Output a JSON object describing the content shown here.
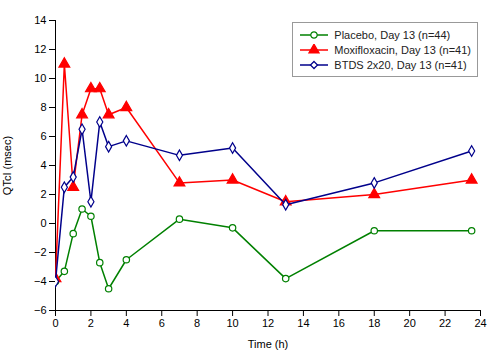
{
  "chart_data": {
    "type": "line",
    "xlabel": "Time (h)",
    "ylabel": "QTcI (msec)",
    "x": [
      0,
      0.5,
      1,
      1.5,
      2,
      2.5,
      3,
      4,
      7,
      10,
      13,
      18,
      23.5
    ],
    "series": [
      {
        "name": "Placebo, Day 13 (n=44)",
        "color": "#008000",
        "marker": "circle_open",
        "values": [
          -4.0,
          -3.3,
          -0.7,
          1.0,
          0.5,
          -2.7,
          -4.5,
          -2.5,
          0.3,
          -0.3,
          -3.8,
          -0.5,
          -0.5
        ]
      },
      {
        "name": "Moxifloxacin, Day 13 (n=41)",
        "color": "#FF0000",
        "marker": "triangle",
        "values": [
          -3.8,
          11.0,
          2.5,
          7.5,
          9.3,
          9.3,
          7.5,
          8.0,
          2.8,
          3.0,
          1.5,
          2.0,
          3.0
        ]
      },
      {
        "name": "BTDS 2x20, Day 13 (n=41)",
        "color": "#00008B",
        "marker": "diamond_open",
        "values": [
          -4.0,
          2.5,
          3.2,
          6.5,
          1.5,
          7.0,
          5.3,
          5.7,
          4.7,
          5.2,
          1.3,
          2.8,
          5.0
        ]
      }
    ],
    "xlim": [
      0,
      24
    ],
    "ylim": [
      -6,
      14
    ],
    "xticks": [
      0,
      2,
      4,
      6,
      8,
      10,
      12,
      14,
      16,
      18,
      20,
      22,
      24
    ],
    "yticks": [
      -6,
      -4,
      -2,
      0,
      2,
      4,
      6,
      8,
      10,
      12,
      14
    ],
    "grid": false,
    "legend": "upper right"
  }
}
